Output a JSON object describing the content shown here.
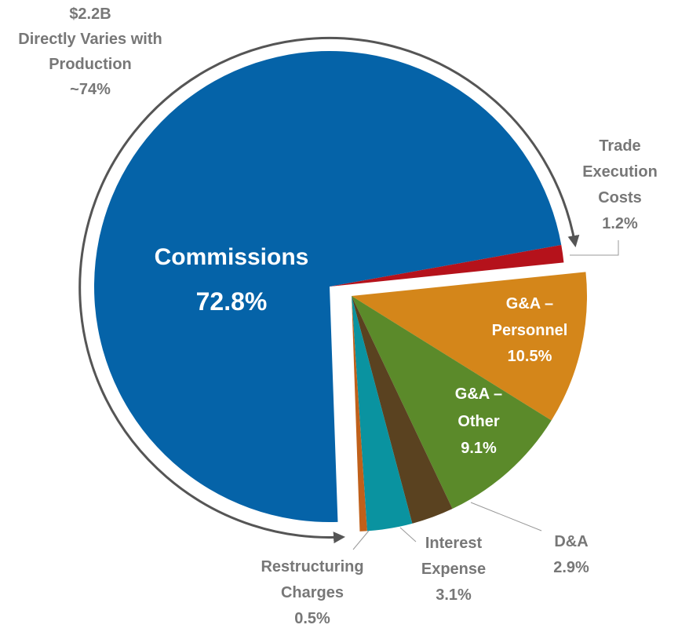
{
  "chart_data": {
    "type": "pie",
    "categories": [
      "Commissions",
      "Trade Execution Costs",
      "G&A – Personnel",
      "G&A – Other",
      "D&A",
      "Interest Expense",
      "Restructuring Charges"
    ],
    "values": [
      72.8,
      1.2,
      10.5,
      9.1,
      2.9,
      3.1,
      0.5
    ],
    "value_labels": [
      "72.8%",
      "1.2%",
      "10.5%",
      "9.1%",
      "2.9%",
      "3.1%",
      "0.5%"
    ],
    "colors": [
      "#0563a8",
      "#b5121b",
      "#d4861a",
      "#5b8a2a",
      "#5a4220",
      "#0a93a0",
      "#c0601a"
    ],
    "exploded": [
      false,
      false,
      true,
      true,
      true,
      true,
      true
    ],
    "annotation": [
      "$2.2B",
      "Directly Varies with Production",
      "~74%"
    ]
  }
}
